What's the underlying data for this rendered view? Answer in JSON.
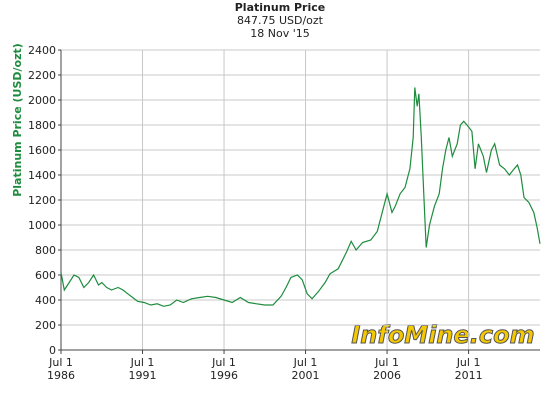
{
  "chart_data": {
    "type": "line",
    "title": "Platinum Price",
    "subtitle": "847.75 USD/ozt",
    "date": "18 Nov '15",
    "y_label": "Platinum Price (USD/ozt)",
    "watermark": "InfoMine.com",
    "grid": true,
    "color": "#1e8c3e",
    "xlim": [
      1986.5,
      2015.88
    ],
    "ylim": [
      0,
      2400
    ],
    "yticks": [
      0,
      200,
      400,
      600,
      800,
      1000,
      1200,
      1400,
      1600,
      1800,
      2000,
      2200,
      2400
    ],
    "xticks": [
      {
        "value": 1986.5,
        "label": "Jul 1 1986"
      },
      {
        "value": 1991.5,
        "label": "Jul 1 1991"
      },
      {
        "value": 1996.5,
        "label": "Jul 1 1996"
      },
      {
        "value": 2001.5,
        "label": "Jul 1 2001"
      },
      {
        "value": 2006.5,
        "label": "Jul 1 2006"
      },
      {
        "value": 2011.5,
        "label": "Jul 1 2011"
      }
    ],
    "x": [
      1986.5,
      1986.7,
      1987.0,
      1987.3,
      1987.6,
      1987.9,
      1988.2,
      1988.5,
      1988.8,
      1989.0,
      1989.3,
      1989.6,
      1990.0,
      1990.3,
      1990.6,
      1990.9,
      1991.2,
      1991.6,
      1992.0,
      1992.4,
      1992.8,
      1993.2,
      1993.6,
      1994.0,
      1994.5,
      1995.0,
      1995.5,
      1996.0,
      1996.5,
      1997.0,
      1997.5,
      1998.0,
      1998.5,
      1999.0,
      1999.5,
      2000.0,
      2000.3,
      2000.6,
      2001.0,
      2001.3,
      2001.6,
      2001.9,
      2002.3,
      2002.7,
      2003.0,
      2003.5,
      2004.0,
      2004.3,
      2004.6,
      2005.0,
      2005.5,
      2005.9,
      2006.3,
      2006.5,
      2006.8,
      2007.0,
      2007.3,
      2007.6,
      2007.9,
      2008.1,
      2008.2,
      2008.35,
      2008.45,
      2008.6,
      2008.8,
      2008.9,
      2009.1,
      2009.4,
      2009.7,
      2009.9,
      2010.1,
      2010.3,
      2010.5,
      2010.8,
      2011.0,
      2011.2,
      2011.4,
      2011.7,
      2011.9,
      2012.1,
      2012.4,
      2012.6,
      2012.9,
      2013.1,
      2013.4,
      2013.7,
      2014.0,
      2014.3,
      2014.5,
      2014.7,
      2014.9,
      2015.2,
      2015.5,
      2015.7,
      2015.88
    ],
    "values": [
      620,
      480,
      540,
      600,
      580,
      500,
      540,
      600,
      520,
      540,
      500,
      480,
      500,
      480,
      450,
      420,
      390,
      380,
      360,
      370,
      350,
      360,
      400,
      380,
      410,
      420,
      430,
      420,
      400,
      380,
      420,
      380,
      370,
      360,
      360,
      430,
      500,
      580,
      600,
      560,
      450,
      410,
      470,
      540,
      610,
      650,
      780,
      870,
      800,
      860,
      880,
      950,
      1150,
      1250,
      1100,
      1150,
      1250,
      1300,
      1450,
      1700,
      2100,
      1950,
      2050,
      1700,
      1100,
      820,
      1000,
      1150,
      1250,
      1450,
      1600,
      1700,
      1550,
      1650,
      1800,
      1830,
      1800,
      1750,
      1450,
      1650,
      1550,
      1420,
      1600,
      1650,
      1480,
      1450,
      1400,
      1450,
      1480,
      1400,
      1220,
      1180,
      1100,
      980,
      850
    ]
  }
}
